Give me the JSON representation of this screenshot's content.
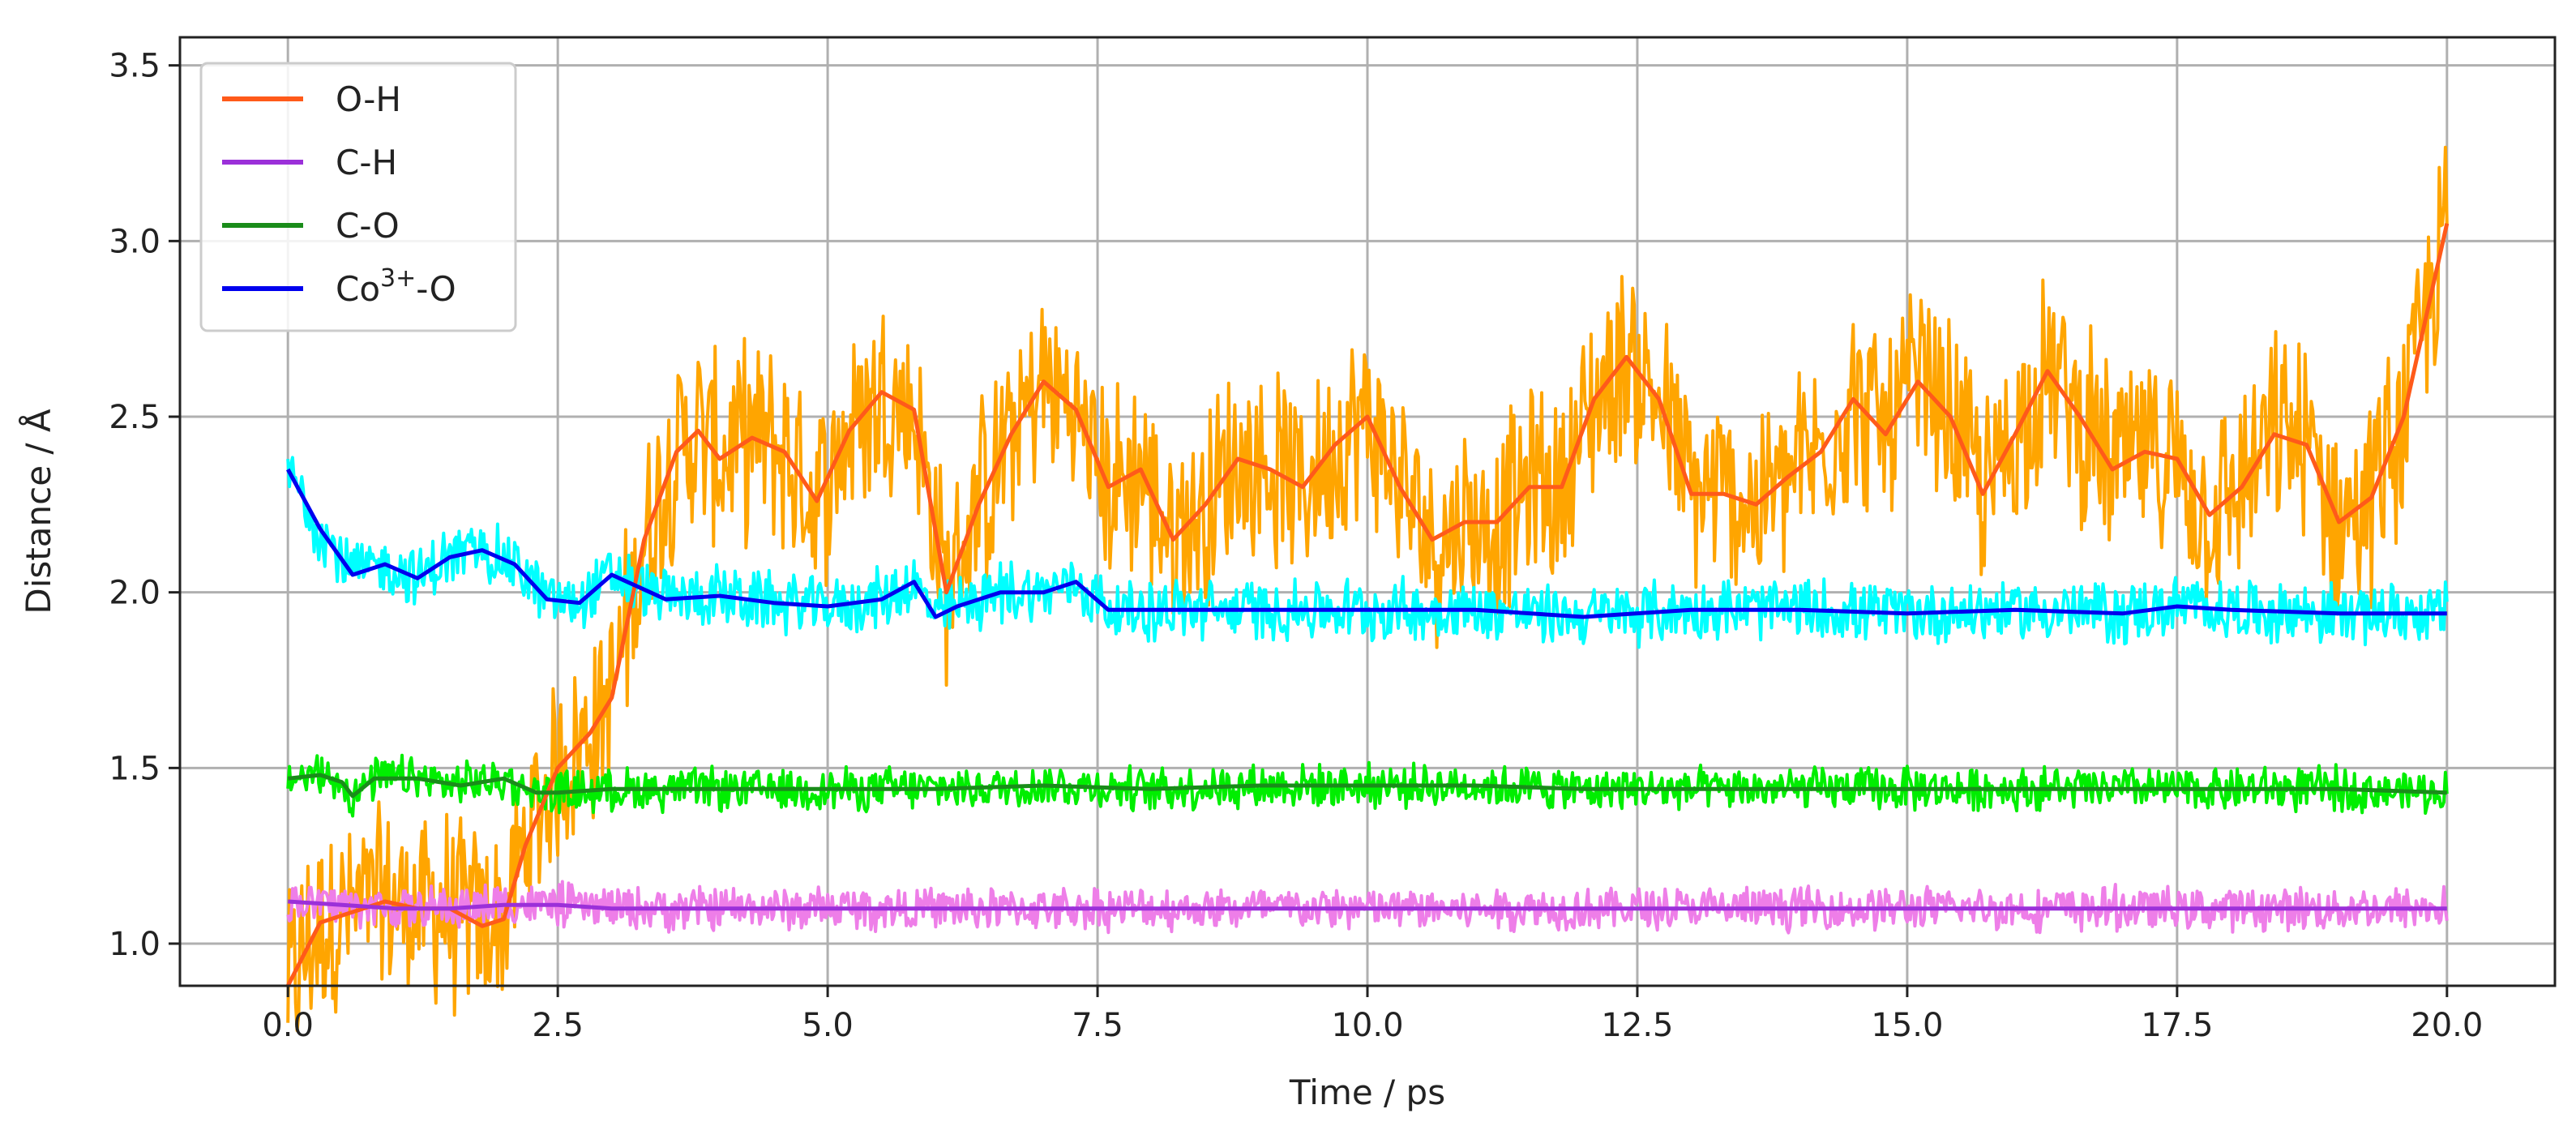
{
  "chart_data": {
    "type": "line",
    "xlabel": "Time / ps",
    "ylabel": "Distance / Å",
    "xlim": [
      -1.0,
      21.0
    ],
    "ylim": [
      0.88,
      3.58
    ],
    "x_ticks": [
      0.0,
      2.5,
      5.0,
      7.5,
      10.0,
      12.5,
      15.0,
      17.5,
      20.0
    ],
    "x_tick_labels": [
      "0.0",
      "2.5",
      "5.0",
      "7.5",
      "10.0",
      "12.5",
      "15.0",
      "17.5",
      "20.0"
    ],
    "y_ticks": [
      1.0,
      1.5,
      2.0,
      2.5,
      3.0,
      3.5
    ],
    "y_tick_labels": [
      "1.0",
      "1.5",
      "2.0",
      "2.5",
      "3.0",
      "3.5"
    ],
    "grid": true,
    "legend_position": "top-left",
    "legend": [
      {
        "label": "O-H",
        "sup": "",
        "label_after": "",
        "color": "#ff5a1a"
      },
      {
        "label": "C-H",
        "sup": "",
        "label_after": "",
        "color": "#9b30d9"
      },
      {
        "label": "C-O",
        "sup": "",
        "label_after": "",
        "color": "#1a8c1a"
      },
      {
        "label": "Co",
        "sup": "3+",
        "label_after": "-O",
        "color": "#0000ee"
      }
    ],
    "series": [
      {
        "name": "O-H",
        "raw_color": "#ffa500",
        "avg_color": "#ff5a1a",
        "noise": 0.32,
        "x": [
          0.0,
          0.3,
          0.6,
          0.9,
          1.2,
          1.5,
          1.8,
          2.0,
          2.2,
          2.5,
          2.8,
          3.0,
          3.3,
          3.6,
          3.8,
          4.0,
          4.3,
          4.6,
          4.9,
          5.2,
          5.5,
          5.8,
          6.1,
          6.4,
          6.7,
          7.0,
          7.3,
          7.6,
          7.9,
          8.2,
          8.5,
          8.8,
          9.1,
          9.4,
          9.7,
          10.0,
          10.3,
          10.6,
          10.9,
          11.2,
          11.5,
          11.8,
          12.1,
          12.4,
          12.7,
          13.0,
          13.3,
          13.6,
          13.9,
          14.2,
          14.5,
          14.8,
          15.1,
          15.4,
          15.7,
          16.0,
          16.3,
          16.6,
          16.9,
          17.2,
          17.5,
          17.8,
          18.1,
          18.4,
          18.7,
          19.0,
          19.3,
          19.6,
          20.0
        ],
        "y": [
          0.88,
          1.06,
          1.09,
          1.12,
          1.1,
          1.1,
          1.05,
          1.07,
          1.28,
          1.5,
          1.6,
          1.7,
          2.15,
          2.4,
          2.46,
          2.38,
          2.44,
          2.4,
          2.26,
          2.46,
          2.57,
          2.52,
          2.0,
          2.25,
          2.45,
          2.6,
          2.52,
          2.3,
          2.35,
          2.15,
          2.25,
          2.38,
          2.35,
          2.3,
          2.42,
          2.5,
          2.3,
          2.15,
          2.2,
          2.2,
          2.3,
          2.3,
          2.55,
          2.67,
          2.55,
          2.28,
          2.28,
          2.25,
          2.33,
          2.4,
          2.55,
          2.45,
          2.6,
          2.5,
          2.28,
          2.45,
          2.63,
          2.5,
          2.35,
          2.4,
          2.38,
          2.22,
          2.3,
          2.45,
          2.42,
          2.2,
          2.27,
          2.5,
          3.05
        ]
      },
      {
        "name": "Co3+-O",
        "raw_color": "#00ffff",
        "avg_color": "#0000ee",
        "noise": 0.1,
        "x": [
          0.0,
          0.3,
          0.6,
          0.9,
          1.2,
          1.5,
          1.8,
          2.1,
          2.4,
          2.7,
          3.0,
          3.5,
          4.0,
          4.5,
          5.0,
          5.5,
          5.8,
          6.0,
          6.2,
          6.6,
          7.0,
          7.3,
          7.6,
          8.0,
          9.0,
          10.0,
          11.0,
          12.0,
          13.0,
          14.0,
          15.0,
          16.0,
          17.0,
          17.5,
          18.0,
          19.0,
          20.0
        ],
        "y": [
          2.35,
          2.18,
          2.05,
          2.08,
          2.04,
          2.1,
          2.12,
          2.08,
          1.98,
          1.97,
          2.05,
          1.98,
          1.99,
          1.97,
          1.96,
          1.98,
          2.03,
          1.93,
          1.96,
          2.0,
          2.0,
          2.03,
          1.95,
          1.95,
          1.95,
          1.95,
          1.95,
          1.93,
          1.95,
          1.95,
          1.94,
          1.95,
          1.94,
          1.96,
          1.95,
          1.94,
          1.94
        ]
      },
      {
        "name": "C-O",
        "raw_color": "#00ee00",
        "avg_color": "#1a8c1a",
        "noise": 0.07,
        "x": [
          0.0,
          0.3,
          0.5,
          0.6,
          0.8,
          1.2,
          1.6,
          2.0,
          2.3,
          2.5,
          3.0,
          4.0,
          5.0,
          6.0,
          7.0,
          8.0,
          9.0,
          10.0,
          11.0,
          12.0,
          13.0,
          14.0,
          15.0,
          16.0,
          17.0,
          18.0,
          19.0,
          20.0
        ],
        "y": [
          1.47,
          1.48,
          1.46,
          1.42,
          1.47,
          1.47,
          1.45,
          1.47,
          1.43,
          1.43,
          1.44,
          1.44,
          1.44,
          1.44,
          1.45,
          1.44,
          1.45,
          1.45,
          1.45,
          1.44,
          1.44,
          1.44,
          1.44,
          1.44,
          1.44,
          1.44,
          1.44,
          1.43
        ]
      },
      {
        "name": "C-H",
        "raw_color": "#ee7ee8",
        "avg_color": "#9b30d9",
        "noise": 0.07,
        "x": [
          0.0,
          0.5,
          1.0,
          1.5,
          2.0,
          2.5,
          3.0,
          4.0,
          5.0,
          6.0,
          7.0,
          8.0,
          9.0,
          10.0,
          11.0,
          12.0,
          13.0,
          14.0,
          15.0,
          16.0,
          17.0,
          18.0,
          19.0,
          20.0
        ],
        "y": [
          1.12,
          1.11,
          1.1,
          1.1,
          1.11,
          1.11,
          1.1,
          1.1,
          1.1,
          1.1,
          1.1,
          1.1,
          1.1,
          1.1,
          1.1,
          1.1,
          1.1,
          1.1,
          1.1,
          1.1,
          1.1,
          1.1,
          1.1,
          1.1
        ]
      }
    ]
  }
}
